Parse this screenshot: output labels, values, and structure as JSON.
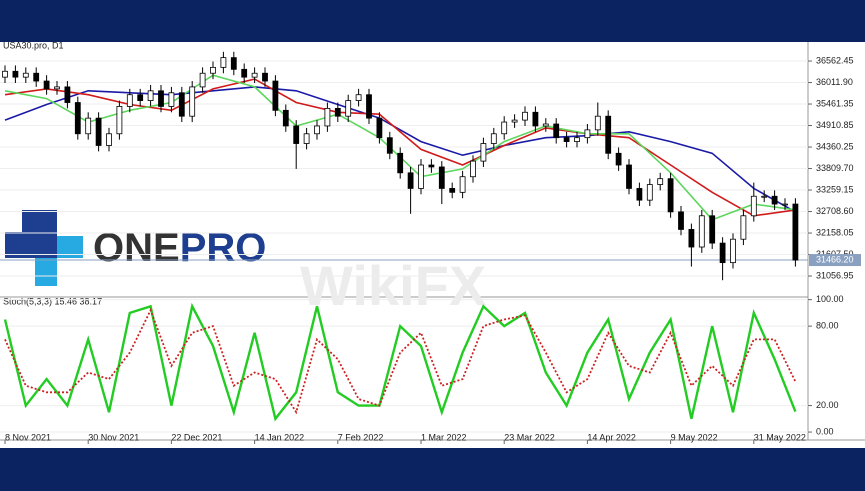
{
  "chart_data": [
    {
      "type": "candlestick",
      "title": "USA30.pro, D1",
      "categories": [
        "8 Nov 2021",
        null,
        null,
        null,
        null,
        null,
        null,
        null,
        "30 Nov 2021",
        null,
        null,
        null,
        null,
        null,
        null,
        null,
        "22 Dec 2021",
        null,
        null,
        null,
        null,
        null,
        null,
        null,
        "14 Jan 2022",
        null,
        null,
        null,
        null,
        null,
        null,
        null,
        "7 Feb 2022",
        null,
        null,
        null,
        null,
        null,
        null,
        null,
        "1 Mar 2022",
        null,
        null,
        null,
        null,
        null,
        null,
        null,
        "23 Mar 2022",
        null,
        null,
        null,
        null,
        null,
        null,
        null,
        "14 Apr 2022",
        null,
        null,
        null,
        null,
        null,
        null,
        null,
        "9 May 2022",
        null,
        null,
        null,
        null,
        null,
        null,
        null,
        "31 May 2022",
        null,
        null,
        null,
        null
      ],
      "open": [
        36150,
        36300,
        36150,
        36250,
        36050,
        35850,
        35900,
        35500,
        34700,
        35100,
        34400,
        34700,
        35400,
        35700,
        35550,
        35800,
        35400,
        35750,
        35150,
        35900,
        36250,
        36400,
        36650,
        36350,
        36150,
        36250,
        36050,
        35300,
        34900,
        34450,
        34700,
        34900,
        35350,
        35150,
        35550,
        35700,
        35100,
        34600,
        34200,
        33700,
        33300,
        33900,
        33850,
        33300,
        33200,
        33600,
        34000,
        34450,
        34700,
        35000,
        35050,
        35250,
        34900,
        34950,
        34600,
        34500,
        34600,
        34800,
        35150,
        34200,
        33900,
        33300,
        33000,
        33400,
        33550,
        32700,
        32250,
        31800,
        32600,
        31900,
        31400,
        32000,
        32600,
        33100,
        33100,
        32900,
        32900
      ],
      "high": [
        36450,
        36450,
        36400,
        36400,
        36200,
        36050,
        36050,
        35650,
        35250,
        35250,
        34850,
        35550,
        35850,
        35850,
        35950,
        35950,
        35900,
        35900,
        36050,
        36400,
        36550,
        36800,
        36800,
        36500,
        36400,
        36400,
        36200,
        35450,
        35050,
        34850,
        35050,
        35500,
        35500,
        35700,
        35850,
        35850,
        35250,
        34750,
        34350,
        33850,
        34050,
        34050,
        34000,
        33450,
        33750,
        34150,
        34600,
        34850,
        35150,
        35200,
        35400,
        35400,
        35100,
        35100,
        34750,
        34750,
        34950,
        35500,
        35300,
        34350,
        34050,
        33450,
        33550,
        33700,
        33700,
        32850,
        32400,
        32750,
        32750,
        32050,
        32150,
        32750,
        33450,
        33250,
        33250,
        33050,
        33050
      ],
      "low": [
        36000,
        36000,
        36000,
        35900,
        35700,
        35700,
        35350,
        34550,
        34550,
        34250,
        34250,
        34550,
        35250,
        35400,
        35400,
        35250,
        35250,
        35000,
        35000,
        35750,
        36100,
        36250,
        36200,
        36000,
        36000,
        35900,
        35150,
        34750,
        33800,
        34300,
        34550,
        34750,
        35000,
        35000,
        35400,
        34950,
        34450,
        34050,
        33550,
        32650,
        33150,
        33700,
        32900,
        33050,
        33050,
        33450,
        33850,
        34300,
        34550,
        34850,
        34900,
        34750,
        34750,
        34450,
        34350,
        34350,
        34450,
        34650,
        34050,
        33750,
        33150,
        32850,
        32850,
        33250,
        32550,
        32100,
        31300,
        31650,
        31750,
        30950,
        31250,
        31850,
        32450,
        32950,
        32750,
        32750,
        31300
      ],
      "close": [
        36300,
        36150,
        36250,
        36050,
        35850,
        35900,
        35500,
        34700,
        35100,
        34400,
        34700,
        35400,
        35700,
        35550,
        35800,
        35400,
        35750,
        35150,
        35900,
        36250,
        36400,
        36650,
        36350,
        36150,
        36250,
        36050,
        35300,
        34900,
        34450,
        34700,
        34900,
        35350,
        35150,
        35550,
        35700,
        35100,
        34600,
        34200,
        33700,
        33300,
        33900,
        33850,
        33300,
        33200,
        33600,
        34000,
        34450,
        34700,
        35000,
        35050,
        35250,
        34900,
        34950,
        34600,
        34500,
        34600,
        34800,
        35150,
        34200,
        33900,
        33300,
        33000,
        33400,
        33550,
        32700,
        32250,
        31800,
        32600,
        31900,
        31400,
        32000,
        32600,
        33100,
        33100,
        32900,
        32900,
        31466.2
      ],
      "overlays": [
        {
          "color": "#1a1aa6",
          "x": [
            0,
            4,
            8,
            12,
            16,
            20,
            24,
            28,
            32,
            36,
            40,
            44,
            48,
            52,
            56,
            60,
            64,
            68,
            72,
            76
          ],
          "values": [
            35050,
            35450,
            35800,
            35750,
            35700,
            35800,
            35900,
            35800,
            35450,
            35100,
            34500,
            34150,
            34400,
            34600,
            34650,
            34750,
            34500,
            34200,
            33300,
            32700
          ]
        },
        {
          "color": "#d11a1a",
          "x": [
            0,
            4,
            8,
            12,
            16,
            20,
            24,
            28,
            32,
            36,
            40,
            44,
            48,
            52,
            56,
            60,
            64,
            68,
            72,
            76
          ],
          "values": [
            35700,
            35850,
            35700,
            35450,
            35300,
            35850,
            36100,
            35500,
            35250,
            35200,
            34300,
            33900,
            34400,
            34850,
            34700,
            34600,
            33900,
            33200,
            32600,
            32750
          ]
        },
        {
          "color": "#5cd65c",
          "x": [
            0,
            4,
            8,
            12,
            16,
            20,
            24,
            28,
            32,
            36,
            40,
            44,
            48,
            52,
            56,
            60,
            64,
            68,
            72,
            76
          ],
          "values": [
            35800,
            35600,
            35000,
            35300,
            35500,
            36200,
            35900,
            34900,
            35200,
            34600,
            33600,
            33800,
            34500,
            34900,
            34700,
            34700,
            33700,
            32500,
            32900,
            32750
          ]
        }
      ],
      "ylim": [
        30520,
        37050
      ],
      "yticks": [
        {
          "value": 36562.45,
          "label": "36562.45"
        },
        {
          "value": 36011.9,
          "label": "36011.90"
        },
        {
          "value": 35461.35,
          "label": "35461.35"
        },
        {
          "value": 34910.85,
          "label": "34910.85"
        },
        {
          "value": 34360.25,
          "label": "34360.25"
        },
        {
          "value": 33809.7,
          "label": "33809.70"
        },
        {
          "value": 33259.15,
          "label": "33259.15"
        },
        {
          "value": 32708.6,
          "label": "32708.60"
        },
        {
          "value": 32158.05,
          "label": "32158.05"
        },
        {
          "value": 31607.5,
          "label": "31607.50"
        },
        {
          "value": 31056.95,
          "label": "31056.95"
        }
      ],
      "last_price": {
        "value": 31466.2,
        "label": "31466.20"
      },
      "grid": true
    },
    {
      "type": "stochastic",
      "title": "Stoch(5,3,3) 15.46 38.17",
      "x": [
        0,
        2,
        4,
        6,
        8,
        10,
        12,
        14,
        16,
        18,
        20,
        22,
        24,
        26,
        28,
        30,
        32,
        34,
        36,
        38,
        40,
        42,
        44,
        46,
        48,
        50,
        52,
        54,
        56,
        58,
        60,
        62,
        64,
        66,
        68,
        70,
        72,
        74,
        76
      ],
      "series": [
        {
          "color": "#22cc22",
          "values": [
            85,
            20,
            40,
            20,
            70,
            15,
            90,
            95,
            20,
            95,
            65,
            15,
            75,
            10,
            30,
            95,
            30,
            20,
            20,
            80,
            65,
            15,
            60,
            95,
            80,
            90,
            45,
            20,
            60,
            85,
            25,
            60,
            85,
            10,
            80,
            15,
            90,
            55,
            15.46
          ]
        },
        {
          "color": "#cc2222",
          "values": [
            70,
            35,
            30,
            30,
            45,
            40,
            60,
            92,
            50,
            75,
            80,
            35,
            45,
            40,
            15,
            70,
            55,
            25,
            20,
            60,
            75,
            35,
            40,
            80,
            85,
            88,
            60,
            30,
            40,
            75,
            50,
            45,
            75,
            35,
            50,
            35,
            70,
            70,
            38.17
          ]
        }
      ],
      "ylim": [
        -6,
        102
      ],
      "yticks": [
        {
          "value": 100,
          "label": "100.00"
        },
        {
          "value": 80,
          "label": "80.00"
        },
        {
          "value": 20,
          "label": "20.00"
        },
        {
          "value": 0,
          "label": "0.00"
        }
      ],
      "grid": true
    }
  ],
  "watermarks": {
    "logo_one": "ONE",
    "logo_pro": "PRO",
    "wikifx": "WikiFX"
  }
}
